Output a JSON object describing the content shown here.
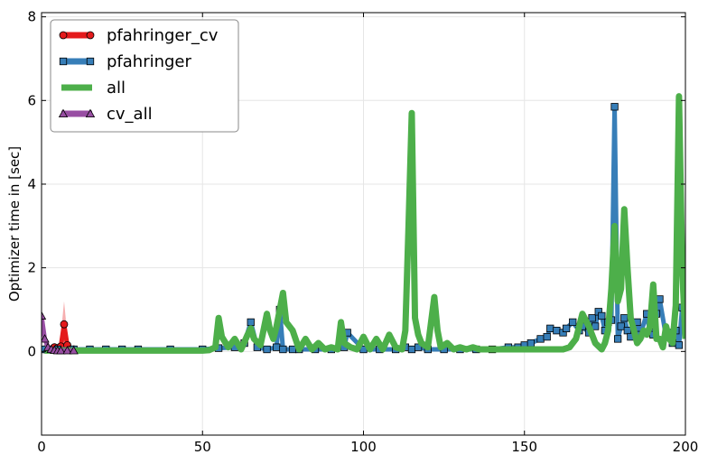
{
  "chart_data": {
    "type": "line",
    "title": "",
    "xlabel": "",
    "ylabel": "Optimizer time in [sec]",
    "xlim": [
      0,
      200
    ],
    "ylim": [
      -2,
      8.1
    ],
    "xticks": [
      0,
      50,
      100,
      150,
      200
    ],
    "yticks": [
      0,
      2,
      4,
      6,
      8
    ],
    "grid": true,
    "legend_position": "top-left",
    "series": [
      {
        "name": "pfahringer_cv",
        "color": "#e41a1c",
        "marker": "circle",
        "x": [
          1,
          2,
          3,
          4,
          5,
          6,
          7,
          8,
          9,
          10
        ],
        "y": [
          0.05,
          0.05,
          0.05,
          0.1,
          0.08,
          0.12,
          0.65,
          0.15,
          0.05,
          0.05
        ],
        "band_peak": {
          "x": 7,
          "y": 1.2
        }
      },
      {
        "name": "pfahringer",
        "color": "#377eb8",
        "marker": "square",
        "x": [
          1,
          5,
          10,
          15,
          20,
          25,
          30,
          40,
          50,
          55,
          60,
          63,
          65,
          67,
          70,
          73,
          74,
          75,
          78,
          80,
          85,
          90,
          94,
          95,
          100,
          105,
          110,
          113,
          115,
          117,
          120,
          125,
          130,
          135,
          140,
          145,
          148,
          150,
          152,
          155,
          157,
          158,
          160,
          162,
          163,
          165,
          167,
          168,
          170,
          171,
          172,
          173,
          174,
          175,
          176,
          177,
          178,
          179,
          180,
          181,
          182,
          183,
          185,
          186,
          188,
          189,
          190,
          191,
          192,
          194,
          195,
          196,
          197,
          198,
          199,
          200
        ],
        "y": [
          0.05,
          0.05,
          0.05,
          0.05,
          0.05,
          0.05,
          0.05,
          0.05,
          0.05,
          0.08,
          0.1,
          0.2,
          0.7,
          0.1,
          0.05,
          0.1,
          1.0,
          0.05,
          0.05,
          0.05,
          0.05,
          0.05,
          0.1,
          0.45,
          0.05,
          0.05,
          0.05,
          0.1,
          0.05,
          0.1,
          0.05,
          0.05,
          0.05,
          0.05,
          0.05,
          0.1,
          0.1,
          0.15,
          0.2,
          0.3,
          0.35,
          0.55,
          0.5,
          0.45,
          0.55,
          0.7,
          0.5,
          0.6,
          0.45,
          0.8,
          0.6,
          0.95,
          0.85,
          0.5,
          0.7,
          0.75,
          5.85,
          0.3,
          0.6,
          0.8,
          0.5,
          0.35,
          0.7,
          0.4,
          0.9,
          0.45,
          0.4,
          0.9,
          1.25,
          0.35,
          0.45,
          0.2,
          0.5,
          0.15,
          1.05,
          0.8
        ]
      },
      {
        "name": "all",
        "color": "#4daf4a",
        "marker": "none",
        "x": [
          1,
          5,
          10,
          20,
          30,
          40,
          50,
          52,
          54,
          55,
          56,
          58,
          60,
          62,
          64,
          65,
          66,
          68,
          70,
          71,
          72,
          73,
          74,
          75,
          76,
          78,
          80,
          82,
          84,
          86,
          88,
          90,
          92,
          93,
          94,
          96,
          98,
          100,
          102,
          104,
          106,
          108,
          110,
          112,
          113,
          114,
          115,
          116,
          117,
          118,
          120,
          121,
          122,
          123,
          124,
          126,
          128,
          130,
          132,
          134,
          136,
          140,
          145,
          150,
          155,
          160,
          162,
          164,
          166,
          168,
          170,
          172,
          174,
          175,
          176,
          177,
          178,
          179,
          180,
          181,
          182,
          183,
          184,
          185,
          186,
          187,
          188,
          189,
          190,
          191,
          192,
          193,
          194,
          195,
          196,
          197,
          198,
          199,
          200
        ],
        "y": [
          0.02,
          0.02,
          0.02,
          0.02,
          0.02,
          0.02,
          0.02,
          0.03,
          0.1,
          0.8,
          0.35,
          0.1,
          0.3,
          0.05,
          0.4,
          0.55,
          0.3,
          0.15,
          0.9,
          0.5,
          0.3,
          0.6,
          1.0,
          1.4,
          0.7,
          0.5,
          0.05,
          0.3,
          0.05,
          0.2,
          0.05,
          0.1,
          0.05,
          0.7,
          0.2,
          0.1,
          0.05,
          0.35,
          0.05,
          0.3,
          0.05,
          0.4,
          0.1,
          0.05,
          0.5,
          3.0,
          5.7,
          0.8,
          0.4,
          0.2,
          0.1,
          0.7,
          1.3,
          0.5,
          0.1,
          0.2,
          0.05,
          0.1,
          0.05,
          0.1,
          0.05,
          0.05,
          0.05,
          0.05,
          0.05,
          0.05,
          0.05,
          0.1,
          0.3,
          0.9,
          0.6,
          0.2,
          0.05,
          0.2,
          0.5,
          1.5,
          3.0,
          1.2,
          1.5,
          3.4,
          2.0,
          0.8,
          0.5,
          0.2,
          0.3,
          0.5,
          0.4,
          0.6,
          1.6,
          0.3,
          0.3,
          0.1,
          0.6,
          0.3,
          0.2,
          1.1,
          6.1,
          2.0,
          0.3
        ]
      },
      {
        "name": "cv_all",
        "color": "#984ea3",
        "marker": "triangle",
        "x": [
          0,
          1,
          2,
          3,
          4,
          5,
          6,
          8,
          10
        ],
        "y": [
          0.85,
          0.3,
          0.1,
          0.05,
          0.03,
          0.02,
          0.02,
          0.02,
          0.02
        ]
      }
    ]
  }
}
